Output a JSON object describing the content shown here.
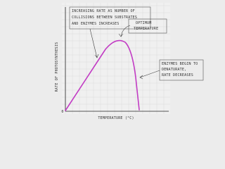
{
  "callouts": [
    {
      "lines": [
        "INCREASING RATE AS NUMBER OF",
        "COLLISIONS BETWEEN SUBSTRATES",
        "AND ENZYMES INCREASES"
      ]
    },
    {
      "lines": [
        "OPTIMUM",
        "TEMPERATURE"
      ]
    },
    {
      "lines": [
        "ENZYMES BEGIN TO",
        "DENATURATE,",
        "RATE DECREASES"
      ]
    }
  ],
  "axes": {
    "y_label": "RATE OF PHOTOSYNTHESIS",
    "x_label": "TEMPERATURE (°C)",
    "origin": "0"
  }
}
